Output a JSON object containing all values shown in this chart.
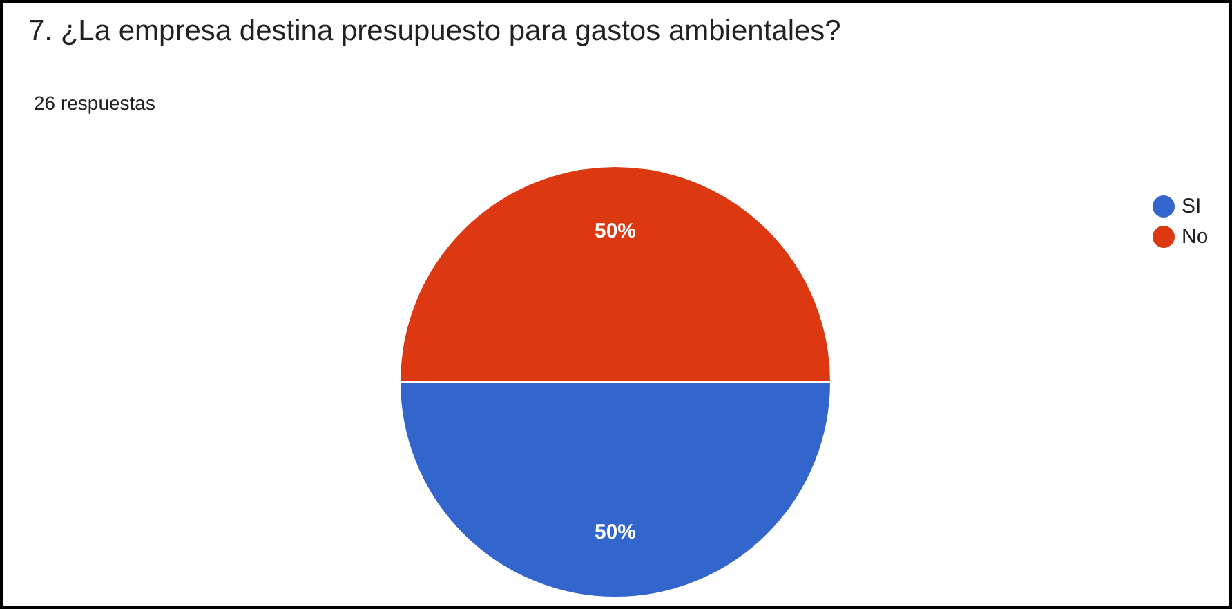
{
  "chart_data": {
    "type": "pie",
    "title": "7. ¿La empresa destina presupuesto para gastos ambientales?",
    "subtitle": "26 respuestas",
    "categories": [
      "SI",
      "No"
    ],
    "values": [
      50,
      50
    ],
    "colors": [
      "#3366cc",
      "#dc3912"
    ],
    "value_labels": [
      "50%",
      "50%"
    ],
    "legend": "right"
  }
}
